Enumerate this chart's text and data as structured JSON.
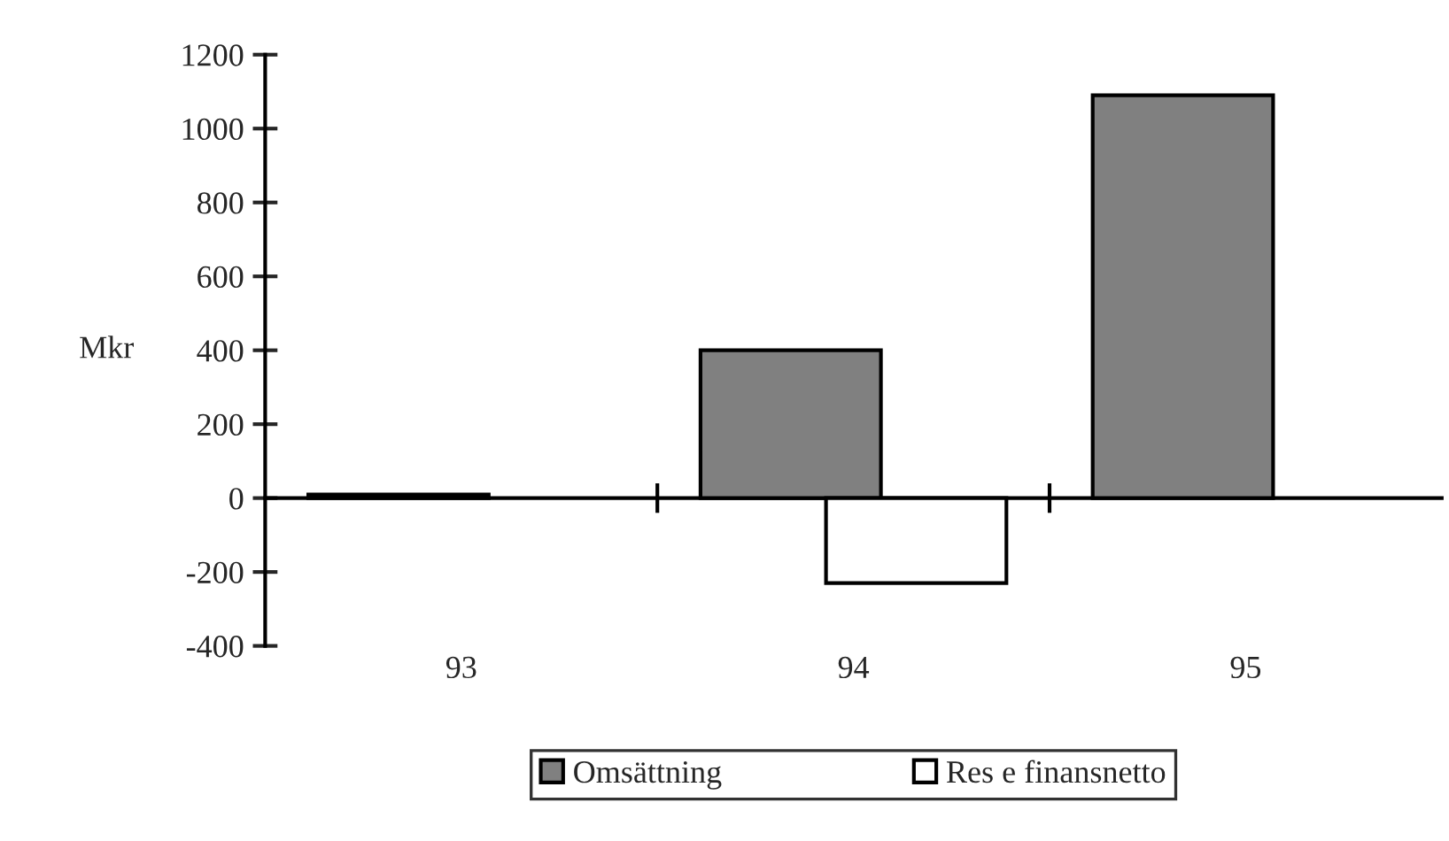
{
  "chart_data": {
    "type": "bar",
    "ylabel": "Mkr",
    "categories": [
      "93",
      "94",
      "95"
    ],
    "series": [
      {
        "name": "Omsättning",
        "color": "#808080",
        "values": [
          10,
          400,
          1090
        ]
      },
      {
        "name": "Res e finansnetto",
        "color": "#ffffff",
        "values": [
          null,
          -230,
          null
        ]
      }
    ],
    "ylim": [
      -400,
      1200
    ],
    "yticks": [
      -400,
      -200,
      0,
      200,
      400,
      600,
      800,
      1000,
      1200
    ],
    "legend": "bottom"
  }
}
